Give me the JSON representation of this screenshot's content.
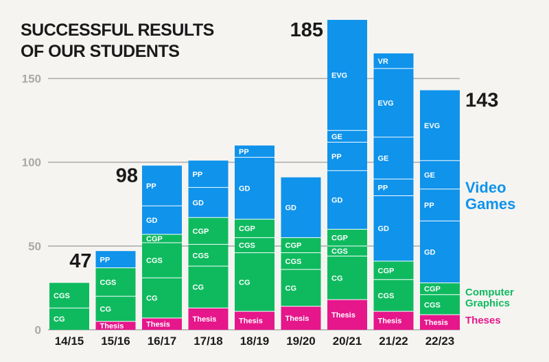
{
  "chart_data": {
    "type": "bar",
    "stacked": true,
    "title": [
      "SUCCESSFUL RESULTS",
      "OF OUR STUDENTS"
    ],
    "ylim": [
      0,
      185
    ],
    "yticks": [
      0,
      50,
      100,
      150
    ],
    "grid": true,
    "categories": [
      "14/15",
      "15/16",
      "16/17",
      "17/18",
      "18/19",
      "19/20",
      "20/21",
      "21/22",
      "22/23"
    ],
    "groups": {
      "Theses": {
        "label": "Theses",
        "color": "#e6168b"
      },
      "CompGraph": {
        "label": "Computer Graphics",
        "color": "#0fba5f"
      },
      "VideoGames": {
        "label": "Video Games",
        "color": "#0f93eb"
      }
    },
    "bars": [
      {
        "category": "14/15",
        "segments": [
          {
            "label": "CG",
            "value": 13,
            "group": "CompGraph"
          },
          {
            "label": "CGS",
            "value": 15,
            "group": "CompGraph"
          }
        ]
      },
      {
        "category": "15/16",
        "total": 47,
        "segments": [
          {
            "label": "Thesis",
            "value": 5,
            "group": "Theses"
          },
          {
            "label": "CG",
            "value": 15,
            "group": "CompGraph"
          },
          {
            "label": "CGS",
            "value": 17,
            "group": "CompGraph"
          },
          {
            "label": "PP",
            "value": 10,
            "group": "VideoGames"
          }
        ]
      },
      {
        "category": "16/17",
        "total": 98,
        "segments": [
          {
            "label": "Thesis",
            "value": 7,
            "group": "Theses"
          },
          {
            "label": "CG",
            "value": 24,
            "group": "CompGraph"
          },
          {
            "label": "CGS",
            "value": 21,
            "group": "CompGraph"
          },
          {
            "label": "CGP",
            "value": 5,
            "group": "CompGraph"
          },
          {
            "label": "GD",
            "value": 17,
            "group": "VideoGames"
          },
          {
            "label": "PP",
            "value": 24,
            "group": "VideoGames"
          }
        ]
      },
      {
        "category": "17/18",
        "segments": [
          {
            "label": "Thesis",
            "value": 13,
            "group": "Theses"
          },
          {
            "label": "CG",
            "value": 25,
            "group": "CompGraph"
          },
          {
            "label": "CGS",
            "value": 13,
            "group": "CompGraph"
          },
          {
            "label": "CGP",
            "value": 16,
            "group": "CompGraph"
          },
          {
            "label": "GD",
            "value": 18,
            "group": "VideoGames"
          },
          {
            "label": "PP",
            "value": 16,
            "group": "VideoGames"
          }
        ]
      },
      {
        "category": "18/19",
        "segments": [
          {
            "label": "Thesis",
            "value": 11,
            "group": "Theses"
          },
          {
            "label": "CG",
            "value": 35,
            "group": "CompGraph"
          },
          {
            "label": "CGS",
            "value": 9,
            "group": "CompGraph"
          },
          {
            "label": "CGP",
            "value": 11,
            "group": "CompGraph"
          },
          {
            "label": "GD",
            "value": 37,
            "group": "VideoGames"
          },
          {
            "label": "PP",
            "value": 7,
            "group": "VideoGames"
          }
        ]
      },
      {
        "category": "19/20",
        "segments": [
          {
            "label": "Thesis",
            "value": 14,
            "group": "Theses"
          },
          {
            "label": "CG",
            "value": 22,
            "group": "CompGraph"
          },
          {
            "label": "CGS",
            "value": 10,
            "group": "CompGraph"
          },
          {
            "label": "CGP",
            "value": 9,
            "group": "CompGraph"
          },
          {
            "label": "GD",
            "value": 36,
            "group": "VideoGames"
          }
        ]
      },
      {
        "category": "20/21",
        "total": 185,
        "segments": [
          {
            "label": "Thesis",
            "value": 18,
            "group": "Theses"
          },
          {
            "label": "CG",
            "value": 26,
            "group": "CompGraph"
          },
          {
            "label": "CGS",
            "value": 6,
            "group": "CompGraph"
          },
          {
            "label": "CGP",
            "value": 10,
            "group": "CompGraph"
          },
          {
            "label": "GD",
            "value": 35,
            "group": "VideoGames"
          },
          {
            "label": "PP",
            "value": 17,
            "group": "VideoGames"
          },
          {
            "label": "GE",
            "value": 7,
            "group": "VideoGames"
          },
          {
            "label": "EVG",
            "value": 66,
            "group": "VideoGames"
          }
        ]
      },
      {
        "category": "21/22",
        "segments": [
          {
            "label": "Thesis",
            "value": 11,
            "group": "Theses"
          },
          {
            "label": "CGS",
            "value": 19,
            "group": "CompGraph"
          },
          {
            "label": "CGP",
            "value": 11,
            "group": "CompGraph"
          },
          {
            "label": "GD",
            "value": 39,
            "group": "VideoGames"
          },
          {
            "label": "PP",
            "value": 10,
            "group": "VideoGames"
          },
          {
            "label": "GE",
            "value": 25,
            "group": "VideoGames"
          },
          {
            "label": "EVG",
            "value": 41,
            "group": "VideoGames"
          },
          {
            "label": "VR",
            "value": 9,
            "group": "VideoGames"
          }
        ]
      },
      {
        "category": "22/23",
        "total": 143,
        "segments": [
          {
            "label": "Thesis",
            "value": 9,
            "group": "Theses"
          },
          {
            "label": "CGS",
            "value": 12,
            "group": "CompGraph"
          },
          {
            "label": "CGP",
            "value": 7,
            "group": "CompGraph"
          },
          {
            "label": "GD",
            "value": 37,
            "group": "VideoGames"
          },
          {
            "label": "PP",
            "value": 19,
            "group": "VideoGames"
          },
          {
            "label": "GE",
            "value": 17,
            "group": "VideoGames"
          },
          {
            "label": "EVG",
            "value": 42,
            "group": "VideoGames"
          }
        ]
      }
    ],
    "legend": [
      {
        "lines": [
          "Video",
          "Games"
        ],
        "group": "VideoGames",
        "position": "right-middle"
      },
      {
        "lines": [
          "Computer",
          "Graphics"
        ],
        "group": "CompGraph",
        "position": "right-bottom"
      },
      {
        "lines": [
          "Theses"
        ],
        "group": "Theses",
        "position": "right-bottom"
      }
    ]
  }
}
